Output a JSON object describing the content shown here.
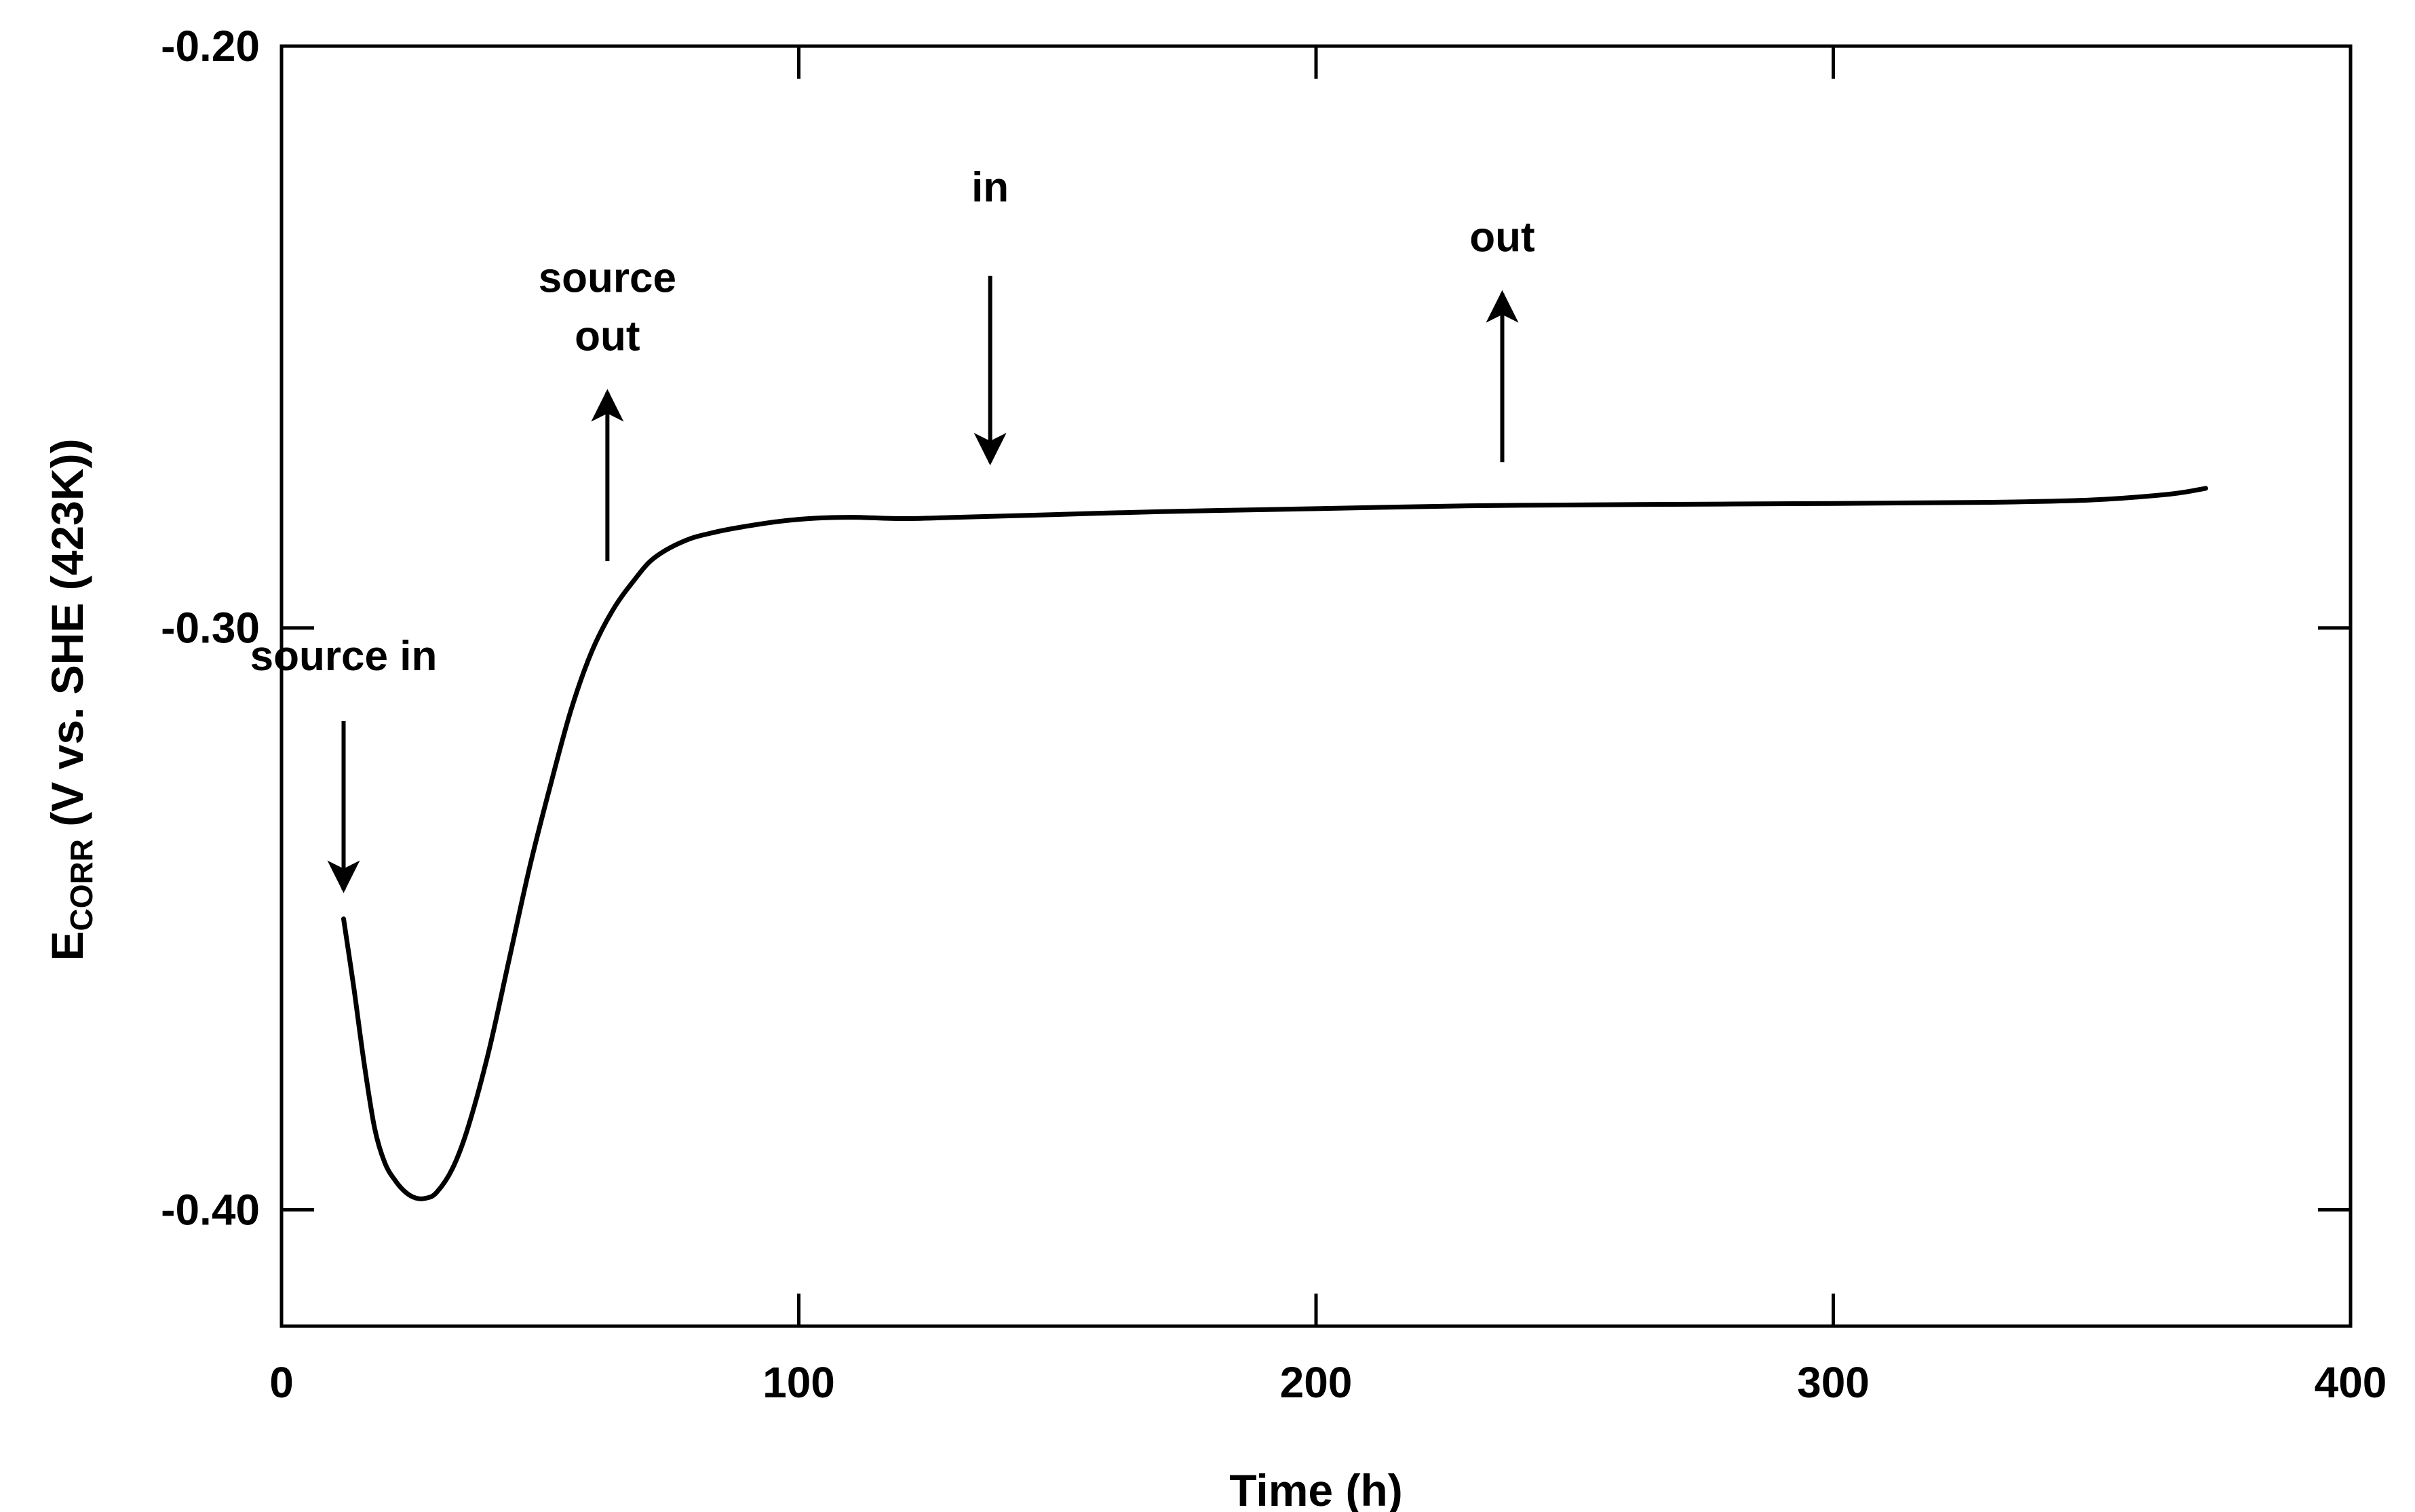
{
  "chart_data": {
    "type": "line",
    "title": "",
    "xlabel": "Time (h)",
    "ylabel": {
      "main": "E",
      "subscript": "CORR",
      "rest": " (V vs. SHE (423K))"
    },
    "xlim": [
      0,
      400
    ],
    "ylim": [
      -0.42,
      -0.2
    ],
    "x_ticks": [
      0,
      100,
      200,
      300,
      400
    ],
    "x_tick_labels": [
      "0",
      "100",
      "200",
      "300",
      "400"
    ],
    "y_ticks": [
      -0.2,
      -0.3,
      -0.4
    ],
    "y_tick_labels": [
      "-0.20",
      "-0.30",
      "-0.40"
    ],
    "grid": false,
    "series": [
      {
        "name": "Ecorr",
        "x": [
          12,
          14,
          16,
          18,
          20,
          22,
          24,
          26,
          28,
          30,
          33,
          36,
          40,
          44,
          48,
          52,
          56,
          60,
          64,
          68,
          72,
          78,
          84,
          90,
          96,
          102,
          108,
          112,
          120,
          130,
          150,
          170,
          200,
          230,
          260,
          300,
          330,
          350,
          365,
          372
        ],
        "y": [
          -0.35,
          -0.362,
          -0.375,
          -0.386,
          -0.392,
          -0.395,
          -0.397,
          -0.398,
          -0.398,
          -0.397,
          -0.393,
          -0.386,
          -0.373,
          -0.357,
          -0.341,
          -0.327,
          -0.314,
          -0.304,
          -0.297,
          -0.292,
          -0.288,
          -0.285,
          -0.2835,
          -0.2825,
          -0.2817,
          -0.2812,
          -0.281,
          -0.281,
          -0.2812,
          -0.281,
          -0.2805,
          -0.28,
          -0.2795,
          -0.279,
          -0.2788,
          -0.2786,
          -0.2784,
          -0.278,
          -0.277,
          -0.276
        ]
      }
    ],
    "annotations": [
      {
        "label": "source in",
        "label_lines": [
          "source in"
        ],
        "x": 12,
        "direction": "down",
        "y_start": -0.316,
        "y_end": -0.345
      },
      {
        "label": "source out",
        "label_lines": [
          "source",
          "out"
        ],
        "x": 63,
        "direction": "up",
        "y_start": -0.2885,
        "y_end": -0.2595
      },
      {
        "label": "in",
        "label_lines": [
          "in"
        ],
        "x": 137,
        "direction": "down",
        "y_start": -0.2395,
        "y_end": -0.2715
      },
      {
        "label": "out",
        "label_lines": [
          "out"
        ],
        "x": 236,
        "direction": "up",
        "y_start": -0.2715,
        "y_end": -0.2425
      }
    ]
  }
}
